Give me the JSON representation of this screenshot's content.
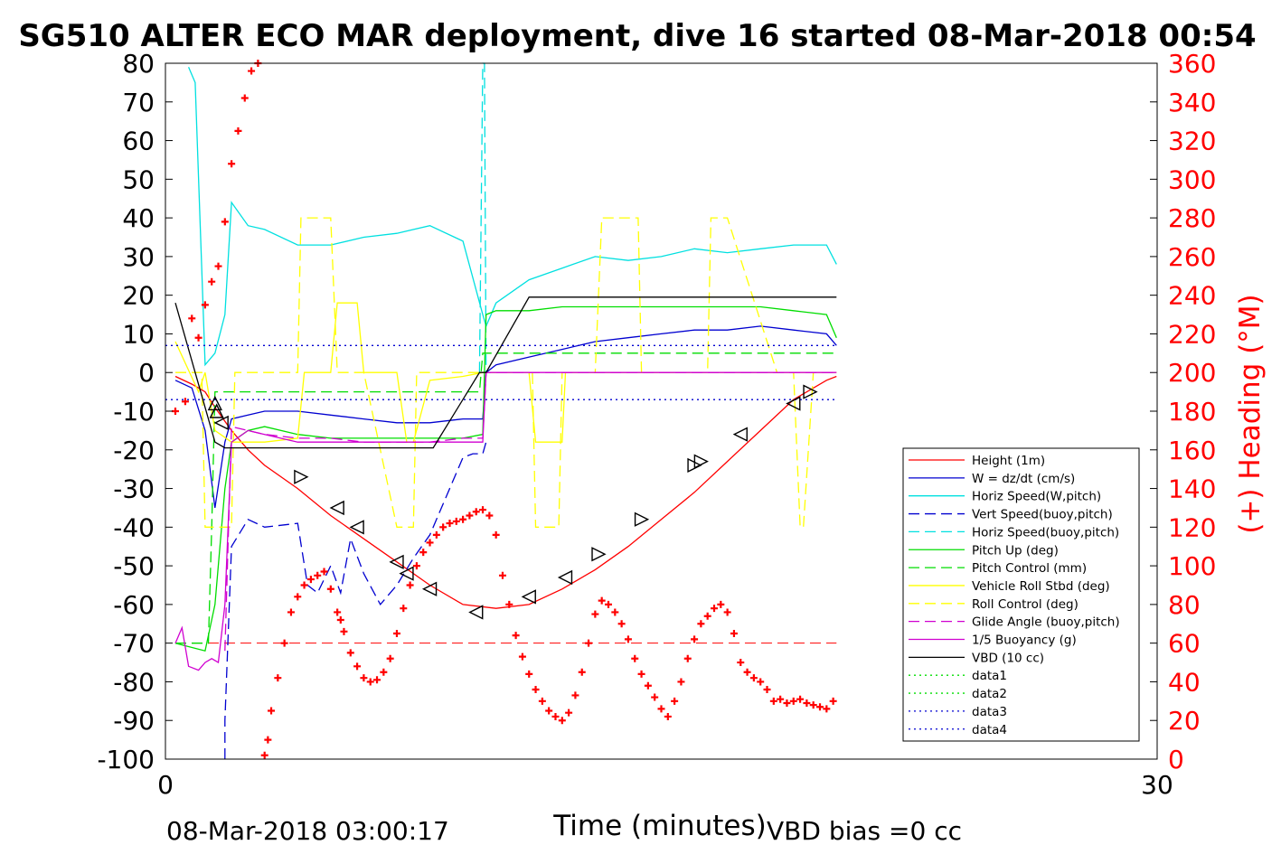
{
  "chart_data": {
    "type": "line",
    "title": "SG510 ALTER ECO MAR deployment, dive 16 started 08-Mar-2018 00:54",
    "xlabel": "Time (minutes)",
    "ylabel_right": "(+) Heading (°M)",
    "xlim": [
      0,
      30
    ],
    "ylim": [
      -100,
      80
    ],
    "ylim_right": [
      0,
      360
    ],
    "x_ticks": [
      "0",
      "30"
    ],
    "y_ticks": [
      "80",
      "70",
      "60",
      "50",
      "40",
      "30",
      "20",
      "10",
      "0",
      "-10",
      "-20",
      "-30",
      "-40",
      "-50",
      "-60",
      "-70",
      "-80",
      "-90",
      "-100"
    ],
    "y_right_ticks": [
      "360",
      "340",
      "320",
      "300",
      "280",
      "260",
      "240",
      "220",
      "200",
      "180",
      "160",
      "140",
      "120",
      "100",
      "80",
      "60",
      "40",
      "20",
      "0"
    ],
    "footer_left": "08-Mar-2018 03:00:17",
    "footer_right": "VBD bias =0 cc",
    "legend_position": "lower-right",
    "colors": {
      "red": "#ff0000",
      "blue": "#0000d0",
      "cyan": "#00e0e0",
      "green": "#00dd00",
      "yellow": "#ffff00",
      "magenta": "#d000d0",
      "black": "#000000"
    },
    "series": [
      {
        "name": "Height (1m)",
        "color": "#ff0000",
        "style": "solid",
        "x": [
          0.3,
          0.8,
          1.2,
          1.5,
          2,
          2.5,
          3,
          4,
          5,
          6,
          7,
          8,
          9,
          10,
          11,
          12,
          13,
          14,
          15,
          16,
          17,
          18,
          19,
          20,
          20.3
        ],
        "y": [
          -1,
          -3,
          -5,
          -9,
          -15,
          -20,
          -24,
          -30,
          -37,
          -43,
          -49,
          -55,
          -60,
          -61,
          -60,
          -56,
          -51,
          -45,
          -38,
          -31,
          -23,
          -15,
          -7,
          -2,
          -1
        ]
      },
      {
        "name": "W = dz/dt (cm/s)",
        "color": "#0000d0",
        "style": "solid",
        "x": [
          0.3,
          0.8,
          1.2,
          1.5,
          1.8,
          2.0,
          2.5,
          3,
          4,
          5,
          6,
          7,
          8,
          9,
          9.6,
          9.7,
          10,
          11,
          12,
          13,
          14,
          15,
          16,
          17,
          18,
          19,
          20,
          20.3
        ],
        "y": [
          -2,
          -4,
          -15,
          -35,
          -18,
          -12,
          -11,
          -10,
          -10,
          -11,
          -12,
          -13,
          -13,
          -12,
          -12,
          0,
          2,
          4,
          6,
          8,
          9,
          10,
          11,
          11,
          12,
          11,
          10,
          7
        ]
      },
      {
        "name": "Horiz Speed(W,pitch)",
        "color": "#00e0e0",
        "style": "solid",
        "x": [
          0.7,
          0.9,
          1.2,
          1.5,
          1.8,
          2.0,
          2.5,
          3,
          4,
          5,
          6,
          7,
          8,
          9,
          9.6,
          9.7,
          10,
          11,
          12,
          13,
          14,
          15,
          16,
          17,
          18,
          19,
          20,
          20.3
        ],
        "y": [
          79,
          75,
          2,
          5,
          15,
          44,
          38,
          37,
          33,
          33,
          35,
          36,
          38,
          34,
          15,
          12,
          18,
          24,
          27,
          30,
          29,
          30,
          32,
          31,
          32,
          33,
          33,
          28
        ]
      },
      {
        "name": "Vert Speed(buoy,pitch)",
        "color": "#0000d0",
        "style": "dashed",
        "x": [
          1.8,
          1.8,
          2.0,
          2.5,
          3,
          4,
          4.3,
          4.6,
          5,
          5.3,
          5.6,
          6,
          6.5,
          7,
          7.5,
          8,
          8.5,
          9,
          9.3,
          9.6,
          9.7
        ],
        "y": [
          -100,
          -90,
          -45,
          -38,
          -40,
          -39,
          -55,
          -57,
          -50,
          -57,
          -43,
          -52,
          -60,
          -55,
          -48,
          -42,
          -32,
          -22,
          -21,
          -21,
          -18
        ]
      },
      {
        "name": "Horiz Speed(buoy,pitch)",
        "color": "#00e0e0",
        "style": "dashed",
        "x": [
          9.5,
          9.6,
          9.65,
          9.7,
          9.8
        ],
        "y": [
          0,
          80,
          80,
          0,
          0
        ]
      },
      {
        "name": "Pitch Up (deg)",
        "color": "#00dd00",
        "style": "solid",
        "x": [
          0.3,
          1.2,
          1.5,
          1.8,
          2.0,
          2.5,
          3,
          4,
          5,
          6,
          7,
          8,
          9,
          9.6,
          9.7,
          10,
          11,
          12,
          13,
          14,
          15,
          16,
          17,
          18,
          19,
          20,
          20.3
        ],
        "y": [
          -70,
          -72,
          -60,
          -30,
          -18,
          -15,
          -14,
          -16,
          -17,
          -17,
          -17,
          -17,
          -17,
          -16,
          15,
          16,
          16,
          17,
          17,
          17,
          17,
          17,
          17,
          17,
          16,
          15,
          9
        ]
      },
      {
        "name": "Pitch Control (mm)",
        "color": "#00dd00",
        "style": "dashed",
        "x": [
          0.3,
          1.3,
          1.4,
          1.5,
          1.8,
          2.0,
          9.5,
          9.6,
          11,
          11.5,
          20.3
        ],
        "y": [
          -70,
          -70,
          -40,
          -5,
          -5,
          -5,
          -5,
          5,
          5,
          5,
          5
        ]
      },
      {
        "name": "Vehicle Roll Stbd (deg)",
        "color": "#ffff00",
        "style": "solid",
        "x": [
          0.3,
          1,
          1.2,
          1.5,
          2,
          3,
          4,
          4.2,
          5,
          5.2,
          5.8,
          6,
          6.5,
          7,
          7.3,
          7.5,
          8,
          9,
          9.6,
          10,
          11,
          11.2,
          12,
          12.1,
          20.3
        ],
        "y": [
          8,
          -5,
          0,
          -15,
          -18,
          -18,
          -17,
          0,
          0,
          18,
          18,
          0,
          0,
          0,
          -18,
          -18,
          -2,
          -1,
          0,
          0,
          0,
          -18,
          -18,
          0,
          0
        ]
      },
      {
        "name": "Roll Control (deg)",
        "color": "#ffff00",
        "style": "dashed",
        "x": [
          0.3,
          1.1,
          1.2,
          2,
          2.1,
          4,
          4.1,
          5,
          5.2,
          5.9,
          6,
          7,
          7.2,
          7.5,
          7.6,
          9,
          10,
          10.1,
          11.1,
          11.2,
          11.9,
          12,
          13,
          13.2,
          14.3,
          14.4,
          16.4,
          16.5,
          17,
          18.5,
          19,
          19.2,
          19.3,
          19.6,
          20.3
        ],
        "y": [
          0,
          0,
          -40,
          -40,
          0,
          0,
          40,
          40,
          0,
          0,
          0,
          -40,
          -40,
          -40,
          0,
          0,
          0,
          0,
          0,
          -40,
          -40,
          0,
          0,
          40,
          40,
          0,
          0,
          40,
          40,
          0,
          0,
          -40,
          -40,
          0,
          0
        ]
      },
      {
        "name": "Glide Angle (buoy,pitch)",
        "color": "#d000d0",
        "style": "dashed",
        "x": [
          1.8,
          2.0,
          3,
          4,
          5,
          6,
          7,
          8,
          9,
          9.6,
          9.7,
          20.3
        ],
        "y": [
          -72,
          -14,
          -16,
          -17,
          -17,
          -18,
          -18,
          -18,
          -17,
          -17,
          0,
          0
        ]
      },
      {
        "name": "1/5 Buoyancy (g)",
        "color": "#d000d0",
        "style": "solid",
        "x": [
          0.3,
          0.5,
          0.7,
          1,
          1.2,
          1.4,
          1.6,
          1.8,
          2,
          2.5,
          3,
          4,
          5,
          6,
          7,
          8,
          9,
          9.6,
          9.7,
          20.3
        ],
        "y": [
          -70,
          -66,
          -76,
          -77,
          -75,
          -74,
          -75,
          -60,
          -18,
          -15,
          -16,
          -18,
          -18,
          -18,
          -18,
          -18,
          -18,
          -18,
          0,
          0
        ]
      },
      {
        "name": "VBD (10 cc)",
        "color": "#000000",
        "style": "solid",
        "x": [
          0.3,
          1.5,
          1.8,
          3,
          5,
          7,
          8,
          8.1,
          9.5,
          9.7,
          11,
          11.2,
          20.3
        ],
        "y": [
          18,
          -18,
          -19.5,
          -19.5,
          -19.5,
          -19.5,
          -19.5,
          -19.5,
          0,
          0,
          19.5,
          19.5,
          19.5
        ]
      },
      {
        "name": "data1",
        "color": "#00dd00",
        "style": "dotted",
        "x": [],
        "y": []
      },
      {
        "name": "data2",
        "color": "#00dd00",
        "style": "dotted",
        "x": [],
        "y": []
      },
      {
        "name": "data3",
        "color": "#0000d0",
        "style": "dotted",
        "x": [
          0,
          20.3
        ],
        "y": [
          7,
          7
        ]
      },
      {
        "name": "data4",
        "color": "#0000d0",
        "style": "dotted",
        "x": [
          0,
          20.3
        ],
        "y": [
          -7,
          -7
        ]
      }
    ],
    "reference_line": {
      "color": "#ff0000",
      "style": "dashed",
      "y": -70,
      "x": [
        0.3,
        20.3
      ]
    },
    "triangle_markers": {
      "x": [
        1.5,
        1.55,
        1.7,
        4.1,
        5.2,
        5.8,
        7.0,
        7.3,
        8.0,
        9.4,
        11.0,
        12.1,
        13.1,
        14.4,
        16.0,
        16.2,
        17.4,
        19.0,
        19.5
      ],
      "y": [
        -8,
        -10,
        -13,
        -27,
        -35,
        -40,
        -49,
        -52,
        -56,
        -62,
        -58,
        -53,
        -47,
        -38,
        -24,
        -23,
        -16,
        -8,
        -5
      ],
      "direction": [
        "up",
        "up",
        "left",
        "right",
        "left",
        "left",
        "left",
        "left",
        "left",
        "left",
        "left",
        "left",
        "right",
        "right",
        "right",
        "right",
        "left",
        "left",
        "right"
      ]
    },
    "heading_series": {
      "name": "(+) Heading (°M)",
      "color": "#ff0000",
      "marker": "+",
      "x": [
        0.3,
        0.6,
        0.8,
        1.0,
        1.2,
        1.4,
        1.6,
        1.8,
        2.0,
        2.2,
        2.4,
        2.6,
        2.8,
        3.0,
        3.1,
        3.2,
        3.4,
        3.6,
        3.8,
        4.0,
        4.2,
        4.4,
        4.6,
        4.8,
        5.0,
        5.2,
        5.3,
        5.4,
        5.6,
        5.8,
        6.0,
        6.2,
        6.4,
        6.6,
        6.8,
        7.0,
        7.2,
        7.4,
        7.6,
        7.8,
        8.0,
        8.2,
        8.4,
        8.6,
        8.8,
        9.0,
        9.2,
        9.4,
        9.6,
        9.8,
        10.0,
        10.2,
        10.4,
        10.6,
        10.8,
        11.0,
        11.2,
        11.4,
        11.6,
        11.8,
        12.0,
        12.2,
        12.4,
        12.6,
        12.8,
        13.0,
        13.2,
        13.4,
        13.6,
        13.8,
        14.0,
        14.2,
        14.4,
        14.6,
        14.8,
        15.0,
        15.2,
        15.4,
        15.6,
        15.8,
        16.0,
        16.2,
        16.4,
        16.6,
        16.8,
        17.0,
        17.2,
        17.4,
        17.6,
        17.8,
        18.0,
        18.2,
        18.4,
        18.6,
        18.8,
        19.0,
        19.2,
        19.4,
        19.6,
        19.8,
        20.0,
        20.2
      ],
      "y": [
        180,
        185,
        228,
        218,
        235,
        247,
        255,
        278,
        308,
        325,
        342,
        356,
        360,
        2,
        10,
        25,
        42,
        60,
        76,
        84,
        90,
        93,
        95,
        97,
        88,
        76,
        72,
        66,
        55,
        48,
        42,
        40,
        41,
        45,
        52,
        65,
        78,
        90,
        100,
        107,
        112,
        116,
        120,
        122,
        123,
        124,
        126,
        128,
        129,
        126,
        116,
        95,
        80,
        64,
        53,
        44,
        36,
        30,
        25,
        22,
        20,
        24,
        33,
        45,
        60,
        75,
        82,
        80,
        76,
        70,
        62,
        52,
        44,
        38,
        32,
        26,
        22,
        30,
        40,
        52,
        62,
        70,
        74,
        78,
        80,
        76,
        65,
        50,
        45,
        42,
        40,
        36,
        30,
        31,
        29,
        30,
        31,
        29,
        28,
        27,
        26,
        30
      ]
    }
  }
}
